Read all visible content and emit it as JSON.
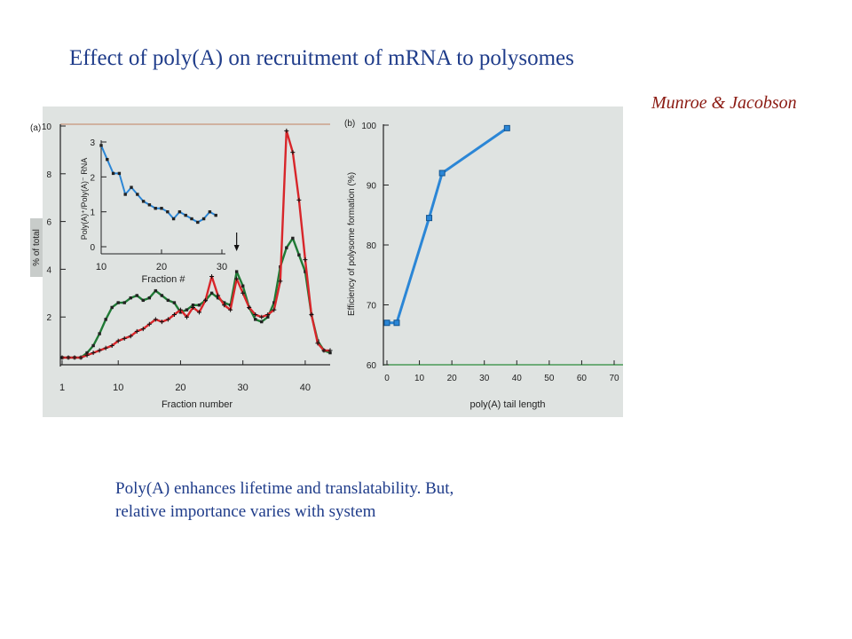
{
  "title": "Effect of poly(A) on recruitment of mRNA to polysomes",
  "credit": "Munroe & Jacobson",
  "caption": {
    "line1": "Poly(A) enhances  lifetime and   translatability.  But,",
    "line2": "relative importance varies with system"
  },
  "colors": {
    "background_panel": "#dfe3e1",
    "red_series": "#d8262a",
    "green_series": "#1f7a35",
    "blue_series": "#2b86d6",
    "title_text": "#1f3c8a",
    "credit_text": "#8b1a12"
  },
  "chart_data": [
    {
      "type": "line",
      "panel_label": "(a)",
      "xlabel": "Fraction number",
      "ylabel": "% of total",
      "xlim": [
        1,
        44
      ],
      "ylim": [
        0,
        10
      ],
      "x_ticks": [
        "1",
        "10",
        "20",
        "30",
        "40"
      ],
      "y_ticks": [
        "2",
        "4",
        "6",
        "8",
        "10"
      ],
      "annotations": [
        "arrow at fraction 29"
      ],
      "arrow_x": 29,
      "series": [
        {
          "color": "red",
          "x": [
            1,
            2,
            3,
            4,
            5,
            6,
            7,
            8,
            9,
            10,
            11,
            12,
            13,
            14,
            15,
            16,
            17,
            18,
            19,
            20,
            21,
            22,
            23,
            24,
            25,
            26,
            27,
            28,
            29,
            30,
            31,
            32,
            33,
            34,
            35,
            36,
            37,
            38,
            39,
            40,
            41,
            42,
            43,
            44
          ],
          "y": [
            0.3,
            0.3,
            0.3,
            0.3,
            0.4,
            0.5,
            0.6,
            0.7,
            0.8,
            1.0,
            1.1,
            1.2,
            1.4,
            1.5,
            1.7,
            1.9,
            1.8,
            1.9,
            2.1,
            2.3,
            2.0,
            2.4,
            2.2,
            2.7,
            3.7,
            2.9,
            2.5,
            2.3,
            3.6,
            3.0,
            2.4,
            2.1,
            2.0,
            2.1,
            2.3,
            3.5,
            9.8,
            8.9,
            6.9,
            4.4,
            2.1,
            0.9,
            0.6,
            0.6
          ]
        },
        {
          "color": "green",
          "x": [
            1,
            2,
            3,
            4,
            5,
            6,
            7,
            8,
            9,
            10,
            11,
            12,
            13,
            14,
            15,
            16,
            17,
            18,
            19,
            20,
            21,
            22,
            23,
            24,
            25,
            26,
            27,
            28,
            29,
            30,
            31,
            32,
            33,
            34,
            35,
            36,
            37,
            38,
            39,
            40,
            41,
            42,
            43,
            44
          ],
          "y": [
            0.3,
            0.3,
            0.3,
            0.3,
            0.5,
            0.8,
            1.3,
            1.9,
            2.4,
            2.6,
            2.6,
            2.8,
            2.9,
            2.7,
            2.8,
            3.1,
            2.9,
            2.7,
            2.6,
            2.2,
            2.3,
            2.5,
            2.5,
            2.7,
            3.0,
            2.8,
            2.6,
            2.5,
            3.9,
            3.3,
            2.4,
            1.9,
            1.8,
            2.0,
            2.6,
            4.1,
            4.9,
            5.3,
            4.6,
            3.9,
            2.1,
            1.0,
            0.6,
            0.5
          ]
        }
      ],
      "inset": {
        "type": "line",
        "xlabel": "Fraction #",
        "ylabel": "Poly(A)⁺/Poly(A)⁻ RNA",
        "xlim": [
          10,
          30
        ],
        "ylim": [
          0,
          3
        ],
        "x_ticks": [
          "10",
          "20",
          "30"
        ],
        "y_ticks": [
          "0",
          "1",
          "2",
          "3"
        ],
        "series": [
          {
            "color": "blue",
            "x": [
              10,
              11,
              12,
              13,
              14,
              15,
              16,
              17,
              18,
              19,
              20,
              21,
              22,
              23,
              24,
              25,
              26,
              27,
              28,
              29
            ],
            "y": [
              2.9,
              2.5,
              2.1,
              2.1,
              1.5,
              1.7,
              1.5,
              1.3,
              1.2,
              1.1,
              1.1,
              1.0,
              0.8,
              1.0,
              0.9,
              0.8,
              0.7,
              0.8,
              1.0,
              0.9
            ]
          }
        ]
      }
    },
    {
      "type": "line",
      "panel_label": "(b)",
      "xlabel": "poly(A) tail length",
      "ylabel": "Efficiency of polysome formation (%)",
      "xlim": [
        0,
        70
      ],
      "ylim": [
        60,
        100
      ],
      "x_ticks": [
        "0",
        "10",
        "20",
        "30",
        "40",
        "50",
        "60",
        "70"
      ],
      "y_ticks": [
        "60",
        "70",
        "80",
        "90",
        "100"
      ],
      "series": [
        {
          "color": "blue",
          "x": [
            0,
            3,
            13,
            17,
            37
          ],
          "y": [
            67,
            67,
            84.5,
            92,
            99.5
          ]
        }
      ]
    }
  ]
}
